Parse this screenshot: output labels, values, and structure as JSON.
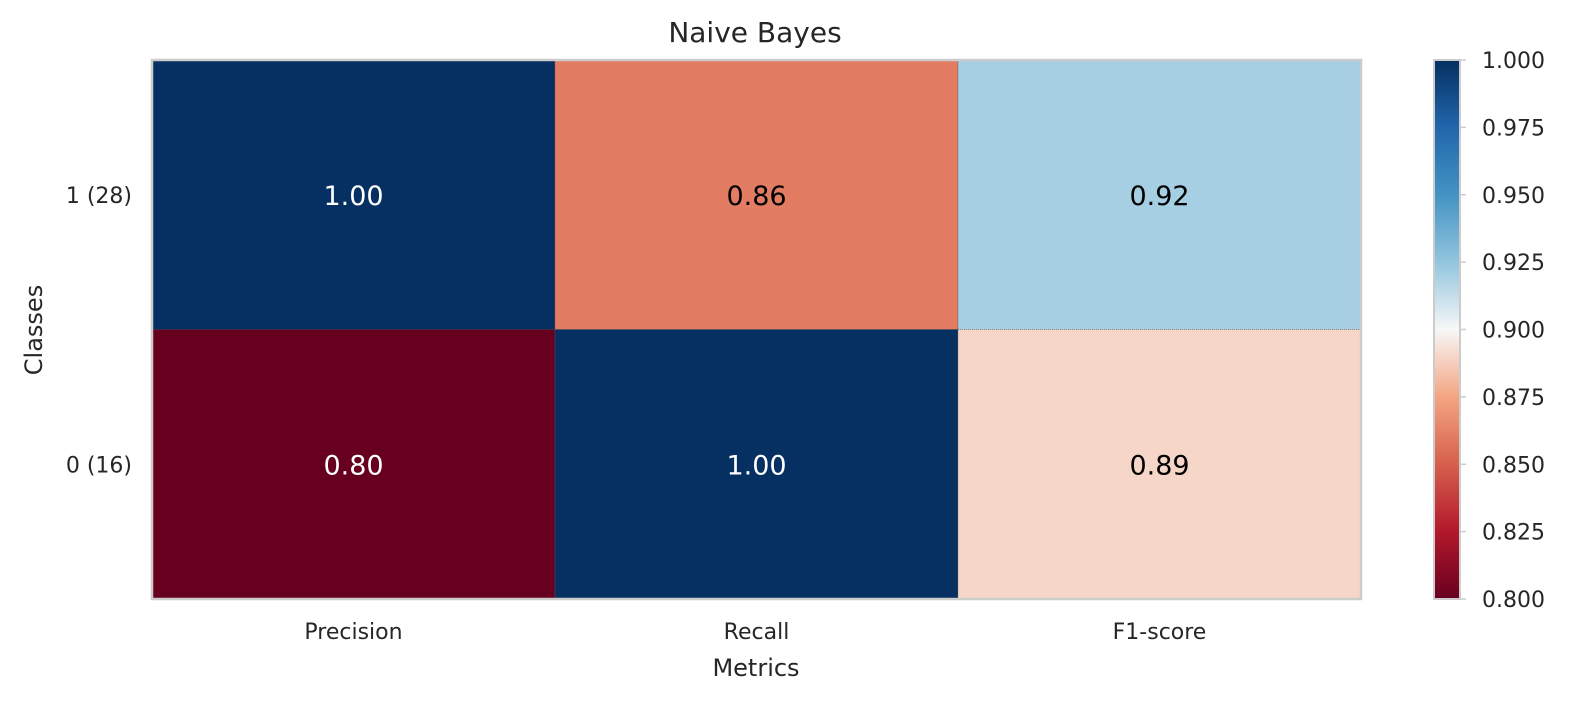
{
  "chart_data": {
    "type": "heatmap",
    "title": "Naive Bayes",
    "xlabel": "Metrics",
    "ylabel": "Classes",
    "x_categories": [
      "Precision",
      "Recall",
      "F1-score"
    ],
    "y_categories": [
      "1 (28)",
      "0 (16)"
    ],
    "values": [
      [
        1.0,
        0.86,
        0.92
      ],
      [
        0.8,
        1.0,
        0.89
      ]
    ],
    "value_labels": [
      [
        "1.00",
        "0.86",
        "0.92"
      ],
      [
        "0.80",
        "1.00",
        "0.89"
      ]
    ],
    "colorbar": {
      "range": [
        0.8,
        1.0
      ],
      "ticks": [
        "0.800",
        "0.825",
        "0.850",
        "0.875",
        "0.900",
        "0.925",
        "0.950",
        "0.975",
        "1.000"
      ],
      "colormap": "RdBu"
    }
  }
}
